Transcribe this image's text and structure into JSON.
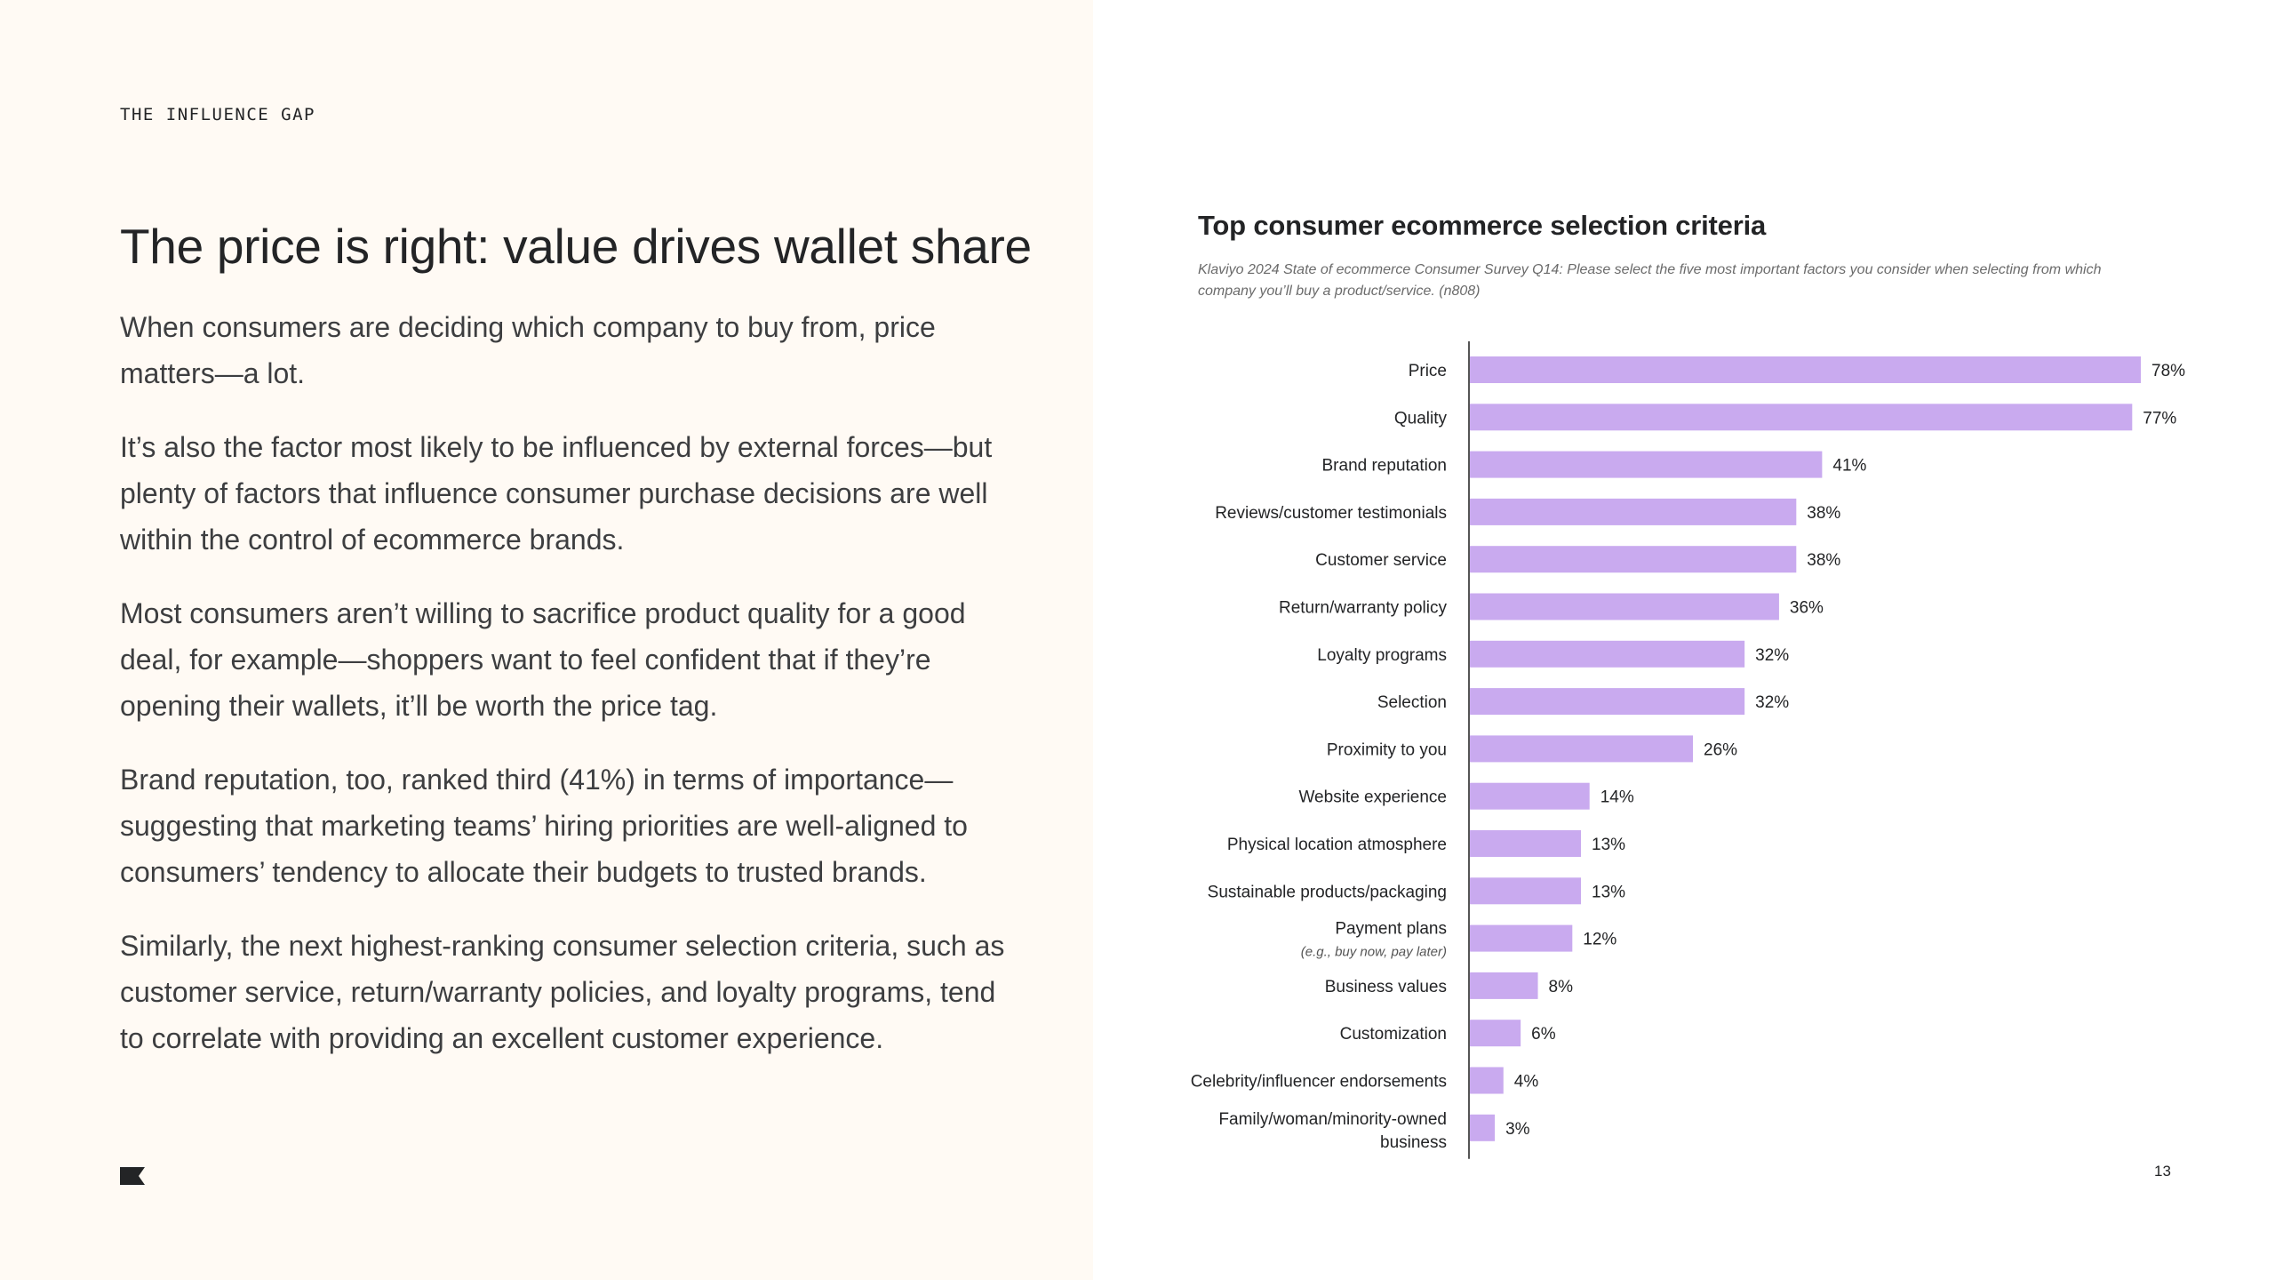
{
  "section_label": "THE INFLUENCE GAP",
  "headline": "The price is right: value drives wallet share",
  "paragraphs": [
    "When consumers are deciding which company to buy from, price matters—a lot.",
    "It’s also the factor most likely to be influenced by external forces—but plenty of factors that influence consumer purchase decisions are well within the control of ecommerce brands.",
    "Most consumers aren’t willing to sacrifice product quality for a good deal, for example—shoppers want to feel confident that if they’re opening their wallets, it’ll be worth the price tag.",
    "Brand reputation, too, ranked third (41%) in terms of importance—suggesting that marketing teams’ hiring priorities are well-aligned to consumers’ tendency to allocate their budgets to trusted brands.",
    "Similarly, the next highest-ranking consumer selection criteria, such as customer service, return/warranty policies, and loyalty programs, tend to correlate with providing an excellent customer experience."
  ],
  "page_number": "13",
  "colors": {
    "bar": "#c9aaef",
    "left_background": "#fffaf4",
    "text": "#232426",
    "axis": "#555555"
  },
  "icons": {
    "logo": "klaviyo-flag-icon"
  },
  "chart_data": {
    "type": "bar",
    "orientation": "horizontal",
    "title": "Top consumer ecommerce selection criteria",
    "subtitle": "Klaviyo 2024 State of ecommerce Consumer Survey Q14: Please select the five most important factors you consider when selecting from which company you’ll buy a product/service. (n808)",
    "xlabel": "",
    "ylabel": "",
    "xlim": [
      0,
      78
    ],
    "grid": false,
    "categories": [
      {
        "label": "Price"
      },
      {
        "label": "Quality"
      },
      {
        "label": "Brand reputation"
      },
      {
        "label": "Reviews/customer testimonials"
      },
      {
        "label": "Customer service"
      },
      {
        "label": "Return/warranty policy"
      },
      {
        "label": "Loyalty programs"
      },
      {
        "label": "Selection"
      },
      {
        "label": "Proximity to you"
      },
      {
        "label": "Website experience"
      },
      {
        "label": "Physical location atmosphere"
      },
      {
        "label": "Sustainable products/packaging"
      },
      {
        "label": "Payment plans",
        "sublabel": "(e.g., buy now, pay later)"
      },
      {
        "label": "Business values"
      },
      {
        "label": "Customization"
      },
      {
        "label": "Celebrity/influencer endorsements"
      },
      {
        "label": "Family/woman/minority-owned",
        "label2": "business"
      }
    ],
    "values": [
      78,
      77,
      41,
      38,
      38,
      36,
      32,
      32,
      26,
      14,
      13,
      13,
      12,
      8,
      6,
      4,
      3
    ],
    "value_labels": [
      "78%",
      "77%",
      "41%",
      "38%",
      "38%",
      "36%",
      "32%",
      "32%",
      "26%",
      "14%",
      "13%",
      "13%",
      "12%",
      "8%",
      "6%",
      "4%",
      "3%"
    ]
  }
}
